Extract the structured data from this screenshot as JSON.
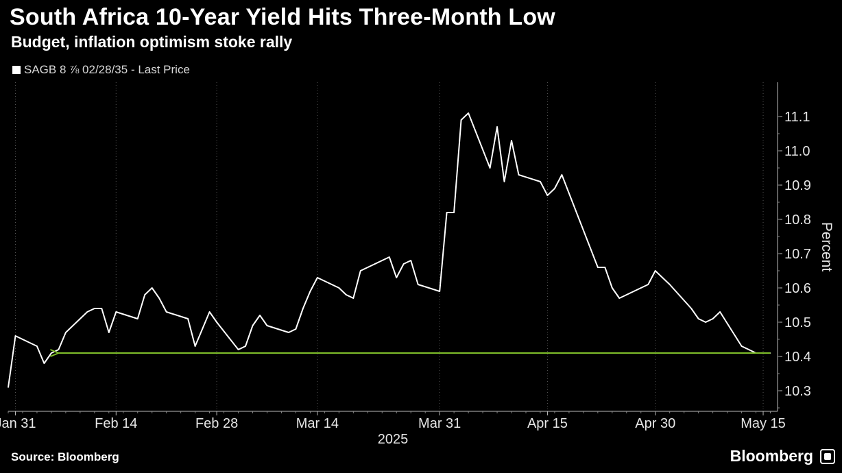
{
  "header": {
    "title": "South Africa 10-Year Yield Hits Three-Month Low",
    "subtitle": "Budget, inflation optimism stoke rally"
  },
  "legend": {
    "label": "SAGB 8 ⅞ 02/28/35 - Last Price"
  },
  "footer": {
    "source": "Source: Bloomberg",
    "brand": "Bloomberg"
  },
  "colors": {
    "line": "#ffffff",
    "arrow": "#7fbf2a",
    "grid": "#555555",
    "background": "#000000"
  },
  "chart_data": {
    "type": "line",
    "ylabel": "Percent",
    "year_label": "2025",
    "ylim": [
      10.24,
      11.2
    ],
    "yticks": [
      10.3,
      10.4,
      10.5,
      10.6,
      10.7,
      10.8,
      10.9,
      11.0,
      11.1
    ],
    "xlim": [
      "2025-01-30",
      "2025-05-17"
    ],
    "xticks": [
      {
        "date": "2025-01-31",
        "label": "Jan 31"
      },
      {
        "date": "2025-02-14",
        "label": "Feb 14"
      },
      {
        "date": "2025-02-28",
        "label": "Feb 28"
      },
      {
        "date": "2025-03-14",
        "label": "Mar 14"
      },
      {
        "date": "2025-03-31",
        "label": "Mar 31"
      },
      {
        "date": "2025-04-15",
        "label": "Apr 15"
      },
      {
        "date": "2025-04-30",
        "label": "Apr 30"
      },
      {
        "date": "2025-05-15",
        "label": "May 15"
      }
    ],
    "series": [
      {
        "x": [
          "2025-01-30",
          "2025-01-31",
          "2025-02-03",
          "2025-02-04",
          "2025-02-05",
          "2025-02-06",
          "2025-02-07",
          "2025-02-10",
          "2025-02-11",
          "2025-02-12",
          "2025-02-13",
          "2025-02-14",
          "2025-02-17",
          "2025-02-18",
          "2025-02-19",
          "2025-02-20",
          "2025-02-21",
          "2025-02-24",
          "2025-02-25",
          "2025-02-26",
          "2025-02-27",
          "2025-02-28",
          "2025-03-03",
          "2025-03-04",
          "2025-03-05",
          "2025-03-06",
          "2025-03-07",
          "2025-03-10",
          "2025-03-11",
          "2025-03-12",
          "2025-03-13",
          "2025-03-14",
          "2025-03-17",
          "2025-03-18",
          "2025-03-19",
          "2025-03-20",
          "2025-03-24",
          "2025-03-25",
          "2025-03-26",
          "2025-03-27",
          "2025-03-28",
          "2025-03-31",
          "2025-04-01",
          "2025-04-02",
          "2025-04-03",
          "2025-04-04",
          "2025-04-07",
          "2025-04-08",
          "2025-04-09",
          "2025-04-10",
          "2025-04-11",
          "2025-04-14",
          "2025-04-15",
          "2025-04-16",
          "2025-04-17",
          "2025-04-22",
          "2025-04-23",
          "2025-04-24",
          "2025-04-25",
          "2025-04-28",
          "2025-04-29",
          "2025-04-30",
          "2025-05-02",
          "2025-05-05",
          "2025-05-06",
          "2025-05-07",
          "2025-05-08",
          "2025-05-09",
          "2025-05-12",
          "2025-05-13",
          "2025-05-14",
          "2025-05-15",
          "2025-05-16"
        ],
        "values": [
          10.31,
          10.46,
          10.43,
          10.38,
          10.41,
          10.42,
          10.47,
          10.53,
          10.54,
          10.54,
          10.47,
          10.53,
          10.51,
          10.58,
          10.6,
          10.57,
          10.53,
          10.51,
          10.43,
          10.48,
          10.53,
          10.5,
          10.42,
          10.43,
          10.49,
          10.52,
          10.49,
          10.47,
          10.48,
          10.54,
          10.59,
          10.63,
          10.6,
          10.58,
          10.57,
          10.65,
          10.69,
          10.63,
          10.67,
          10.68,
          10.61,
          10.59,
          10.82,
          10.82,
          11.09,
          11.11,
          10.95,
          11.07,
          10.91,
          11.03,
          10.93,
          10.91,
          10.87,
          10.89,
          10.93,
          10.66,
          10.66,
          10.6,
          10.57,
          10.6,
          10.61,
          10.65,
          10.61,
          10.54,
          10.51,
          10.5,
          10.51,
          10.53,
          10.43,
          10.42,
          10.41,
          10.41,
          10.41
        ]
      }
    ],
    "annotations": [
      {
        "type": "arrow",
        "from": {
          "date": "2025-05-16",
          "value": 10.41
        },
        "to": {
          "date": "2025-02-06",
          "value": 10.41
        }
      }
    ]
  }
}
